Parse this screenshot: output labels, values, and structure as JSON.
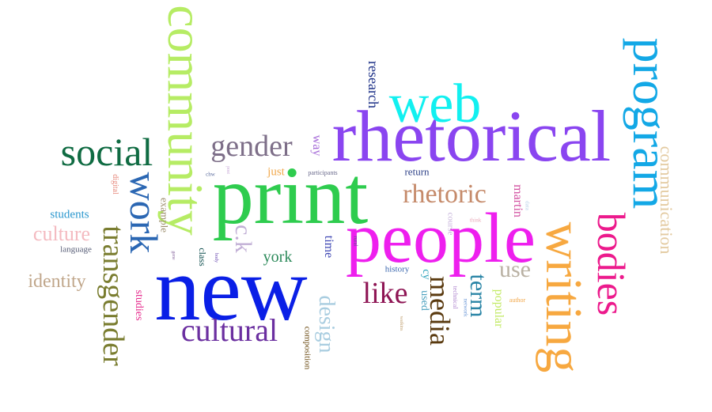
{
  "words": [
    {
      "text": "new",
      "color": "#0a1fe6"
    },
    {
      "text": "print",
      "color": "#2ecc4e"
    },
    {
      "text": "people",
      "color": "#ee1fee"
    },
    {
      "text": "rhetorical",
      "color": "#8a45f0"
    },
    {
      "text": "web",
      "color": "#12f0f0"
    },
    {
      "text": "community",
      "color": "#b6ec64"
    },
    {
      "text": "program",
      "color": "#13a8e6"
    },
    {
      "text": "writing",
      "color": "#f7a840"
    },
    {
      "text": "bodies",
      "color": "#ec1a8c"
    },
    {
      "text": "social",
      "color": "#0f6b42"
    },
    {
      "text": "work",
      "color": "#2b67b3"
    },
    {
      "text": "transgender",
      "color": "#7a7d30"
    },
    {
      "text": "gender",
      "color": "#7d6e88"
    },
    {
      "text": "cultural",
      "color": "#6b2fa0"
    },
    {
      "text": "rhetoric",
      "color": "#c58a6a"
    },
    {
      "text": "like",
      "color": "#8e1554"
    },
    {
      "text": "media",
      "color": "#5a3a0f"
    },
    {
      "text": "design",
      "color": "#a9cde0"
    },
    {
      "text": "term",
      "color": "#2a85a6"
    },
    {
      "text": "use",
      "color": "#b9b1a3"
    },
    {
      "text": "c.k",
      "color": "#c2b0d6"
    },
    {
      "text": "york",
      "color": "#2c8a5a"
    },
    {
      "text": "culture",
      "color": "#f4bac0"
    },
    {
      "text": "identity",
      "color": "#c0a68a"
    },
    {
      "text": "communication",
      "color": "#e3caa0"
    },
    {
      "text": "research",
      "color": "#1a2e86"
    },
    {
      "text": "students",
      "color": "#2a97ce"
    },
    {
      "text": "martin",
      "color": "#d24fa0"
    },
    {
      "text": "popular",
      "color": "#c2ea64"
    },
    {
      "text": "way",
      "color": "#a56ad8"
    },
    {
      "text": "time",
      "color": "#3f48b4"
    },
    {
      "text": "just",
      "color": "#f2a94c"
    },
    {
      "text": "studies",
      "color": "#e62d8e"
    },
    {
      "text": "example",
      "color": "#9c8d6c"
    },
    {
      "text": "class",
      "color": "#0d4d4d"
    },
    {
      "text": "cy",
      "color": "#27a0b9"
    },
    {
      "text": "used",
      "color": "#4aa0be"
    },
    {
      "text": "composition",
      "color": "#6a4a12"
    },
    {
      "text": "language",
      "color": "#5a6079"
    },
    {
      "text": "digital",
      "color": "#e6877a"
    },
    {
      "text": "return",
      "color": "#2a3e86"
    },
    {
      "text": "history",
      "color": "#3a66ad"
    },
    {
      "text": "course",
      "color": "#c7b4db"
    },
    {
      "text": "technical",
      "color": "#b28ad0"
    },
    {
      "text": "network",
      "color": "#6a97d6"
    },
    {
      "text": "author",
      "color": "#f2a94c"
    },
    {
      "text": "participants",
      "color": "#6a6a8c"
    },
    {
      "text": "data",
      "color": "#b9d0e8"
    },
    {
      "text": "think",
      "color": "#e8a8b8"
    },
    {
      "text": "rural",
      "color": "#5a4a8c"
    },
    {
      "text": "watkins",
      "color": "#c0a070"
    },
    {
      "text": "chw",
      "color": "#5a6a9c"
    },
    {
      "text": "gene",
      "color": "#8a6aa0"
    },
    {
      "text": "body",
      "color": "#6a4ab0"
    },
    {
      "text": "post",
      "color": "#c7a7d6"
    }
  ]
}
